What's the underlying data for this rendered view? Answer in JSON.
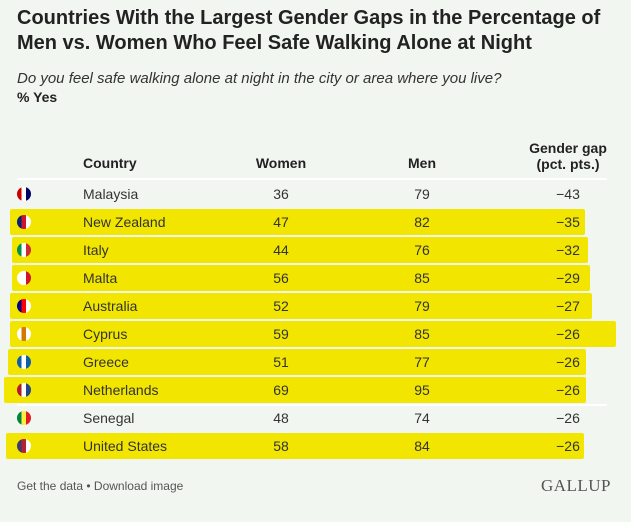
{
  "chart_data": {
    "type": "table",
    "title": "Countries With the Largest Gender Gaps in the Percentage of Men vs. Women Who Feel Safe Walking Alone at Night",
    "subtitle": "Do you feel safe walking alone at night in the city or area where you live?",
    "unit": "% Yes",
    "columns": [
      "Country",
      "Women",
      "Men",
      "Gender gap (pct. pts.)"
    ],
    "rows": [
      {
        "country": "Malaysia",
        "women": "36",
        "men": "79",
        "gap": "−43",
        "highlighted": false,
        "flag": [
          "#cc0001",
          "#ffffff",
          "#010066"
        ]
      },
      {
        "country": "New Zealand",
        "women": "47",
        "men": "82",
        "gap": "−35",
        "highlighted": true,
        "flag": [
          "#00247d",
          "#cc142b",
          "#ffffff"
        ]
      },
      {
        "country": "Italy",
        "women": "44",
        "men": "76",
        "gap": "−32",
        "highlighted": true,
        "flag": [
          "#009246",
          "#ffffff",
          "#ce2b37"
        ]
      },
      {
        "country": "Malta",
        "women": "56",
        "men": "85",
        "gap": "−29",
        "highlighted": true,
        "flag": [
          "#ffffff",
          "#ffffff",
          "#cf142b"
        ]
      },
      {
        "country": "Australia",
        "women": "52",
        "men": "79",
        "gap": "−27",
        "highlighted": true,
        "flag": [
          "#00008b",
          "#ff0000",
          "#ffffff"
        ]
      },
      {
        "country": "Cyprus",
        "women": "59",
        "men": "85",
        "gap": "−26",
        "highlighted": true,
        "flag": [
          "#ffffff",
          "#d57800",
          "#ffffff"
        ]
      },
      {
        "country": "Greece",
        "women": "51",
        "men": "77",
        "gap": "−26",
        "highlighted": true,
        "flag": [
          "#0d5eaf",
          "#ffffff",
          "#0d5eaf"
        ]
      },
      {
        "country": "Netherlands",
        "women": "69",
        "men": "95",
        "gap": "−26",
        "highlighted": true,
        "flag": [
          "#ae1c28",
          "#ffffff",
          "#21468b"
        ]
      },
      {
        "country": "Senegal",
        "women": "48",
        "men": "74",
        "gap": "−26",
        "highlighted": false,
        "flag": [
          "#00853f",
          "#fdef42",
          "#e31b23"
        ]
      },
      {
        "country": "United States",
        "women": "58",
        "men": "84",
        "gap": "−26",
        "highlighted": true,
        "flag": [
          "#3c3b6e",
          "#b22234",
          "#ffffff"
        ]
      }
    ]
  },
  "header": {
    "country": "Country",
    "women": "Women",
    "men": "Men",
    "gap_line1": "Gender gap",
    "gap_line2": "(pct. pts.)"
  },
  "footer": {
    "get_data": "Get the data",
    "separator": " • ",
    "download": "Download image",
    "logo": "GALLUP"
  },
  "colors": {
    "highlight": "#f2e600",
    "background": "#f2f6f0"
  }
}
